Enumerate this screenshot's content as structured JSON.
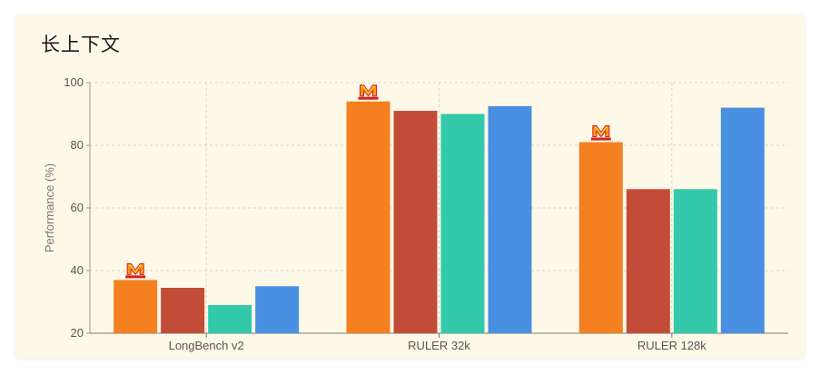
{
  "card": {
    "title": "长上下文"
  },
  "chart_data": {
    "type": "bar",
    "title": "长上下文",
    "xlabel": "",
    "ylabel": "Performance (%)",
    "ylim": [
      20,
      100
    ],
    "yticks": [
      20,
      40,
      60,
      80,
      100
    ],
    "grid": true,
    "categories": [
      "LongBench v2",
      "RULER 32k",
      "RULER 128k"
    ],
    "series": [
      {
        "color": "#f58020",
        "values": [
          37,
          94,
          81
        ],
        "marker": "M-logo-icon"
      },
      {
        "color": "#c24c37",
        "values": [
          34.5,
          91,
          66
        ]
      },
      {
        "color": "#33c9ab",
        "values": [
          29,
          90,
          66
        ]
      },
      {
        "color": "#4a90e2",
        "values": [
          35,
          92.5,
          92
        ]
      }
    ]
  }
}
